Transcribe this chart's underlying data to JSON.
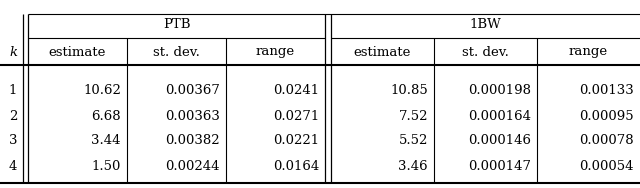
{
  "k_values": [
    "1",
    "2",
    "3",
    "4"
  ],
  "ptb_estimate": [
    "10.62",
    "6.68",
    "3.44",
    "1.50"
  ],
  "ptb_stdev": [
    "0.00367",
    "0.00363",
    "0.00382",
    "0.00244"
  ],
  "ptb_range": [
    "0.0241",
    "0.0271",
    "0.0221",
    "0.0164"
  ],
  "bw_estimate": [
    "10.85",
    "7.52",
    "5.52",
    "3.46"
  ],
  "bw_stdev": [
    "0.000198",
    "0.000164",
    "0.000146",
    "0.000147"
  ],
  "bw_range": [
    "0.00133",
    "0.00095",
    "0.00078",
    "0.00054"
  ],
  "header1_ptb": "PTB",
  "header1_bw": "1BW",
  "subheaders": [
    "estimate",
    "st. dev.",
    "range"
  ],
  "k_label": "k",
  "bg_color": "#ffffff",
  "font_size": 9.5
}
